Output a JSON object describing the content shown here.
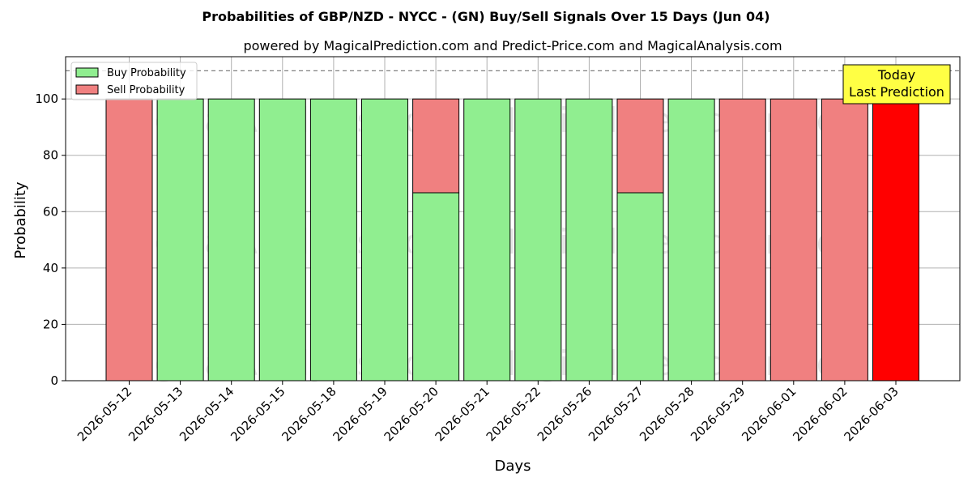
{
  "chart_data": {
    "type": "bar",
    "title": "Probabilities of GBP/NZD - NYCC -  (GN) Buy/Sell Signals Over 15 Days (Jun 04)",
    "subtitle": "powered by MagicalPrediction.com and Predict-Price.com and MagicalAnalysis.com",
    "xlabel": "Days",
    "ylabel": "Probability",
    "ylim": [
      0,
      115
    ],
    "yticks": [
      0,
      20,
      40,
      60,
      80,
      100
    ],
    "reference_line": 110,
    "grid": true,
    "stacked": true,
    "legend_position": "top-left",
    "categories": [
      "2026-05-12",
      "2026-05-13",
      "2026-05-14",
      "2026-05-15",
      "2026-05-18",
      "2026-05-19",
      "2026-05-20",
      "2026-05-21",
      "2026-05-22",
      "2026-05-26",
      "2026-05-27",
      "2026-05-28",
      "2026-05-29",
      "2026-06-01",
      "2026-06-02",
      "2026-06-03"
    ],
    "series": [
      {
        "name": "Buy Probability",
        "color": "#90ee90",
        "values": [
          0,
          100,
          100,
          100,
          100,
          100,
          66.7,
          100,
          100,
          100,
          66.7,
          100,
          0,
          0,
          0,
          0
        ]
      },
      {
        "name": "Sell Probability",
        "color": "#f08080",
        "values": [
          100,
          0,
          0,
          0,
          0,
          0,
          33.3,
          0,
          0,
          0,
          33.3,
          0,
          100,
          100,
          100,
          100
        ]
      }
    ],
    "highlight": {
      "index": 15,
      "color": "#ff0000",
      "label_lines": [
        "Today",
        "Last Prediction"
      ],
      "box_color": "#ffff44"
    },
    "watermarks": [
      "MagicalAnalysis.com",
      "MagicalPrediction.com"
    ]
  }
}
